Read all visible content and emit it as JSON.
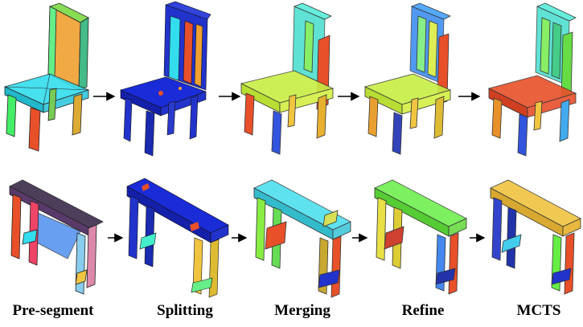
{
  "labels": {
    "pre_segment": "Pre-segment",
    "splitting": "Splitting",
    "merging": "Merging",
    "refine": "Refine",
    "mcts": "MCTS"
  },
  "colors": {
    "blue": "#2233cc",
    "cyan": "#33ddee",
    "yellow_green": "#c8ee44",
    "green": "#66ee44",
    "red_orange": "#e8502a",
    "orange": "#f0a030",
    "gold": "#f0c440",
    "dark_purple": "#3a2a4a",
    "arrow": "#000000"
  }
}
